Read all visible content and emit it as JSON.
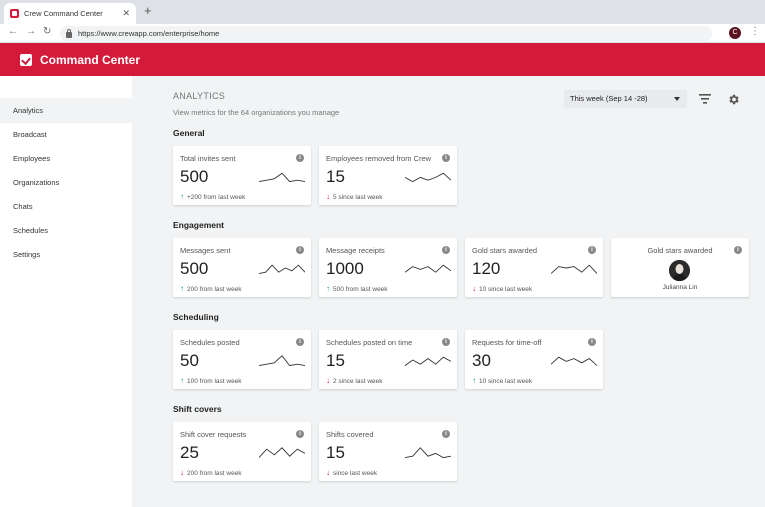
{
  "browser": {
    "tab_title": "Crew Command Center",
    "tab_close": "✕",
    "new_tab": "+",
    "url": "https://www.crewapp.com/enterprise/home",
    "profile_initial": "C",
    "back": "←",
    "forward": "→",
    "reload": "↻",
    "menu": "⋮"
  },
  "app": {
    "title": "Command Center",
    "brand_color": "#d31a3a"
  },
  "sidebar": {
    "items": [
      {
        "label": "Analytics",
        "active": true
      },
      {
        "label": "Broadcast"
      },
      {
        "label": "Employees"
      },
      {
        "label": "Organizations"
      },
      {
        "label": "Chats"
      },
      {
        "label": "Schedules"
      },
      {
        "label": "Settings"
      }
    ]
  },
  "header": {
    "title": "ANALYTICS",
    "subtitle": "View metrics for the 64 organizations you manage",
    "date_range": "This week (Sep 14 -28)"
  },
  "sections": {
    "general": {
      "title": "General",
      "cards": [
        {
          "label": "Total invites sent",
          "value": "500",
          "delta": "+200 from last week",
          "trend": "up",
          "spark": [
            9,
            8,
            7,
            3,
            9,
            8,
            9
          ]
        },
        {
          "label": "Employees removed from Crew",
          "value": "15",
          "delta": "5 since last week",
          "trend": "down",
          "spark": [
            6,
            9,
            6,
            8,
            6,
            3,
            8
          ]
        }
      ]
    },
    "engagement": {
      "title": "Engagement",
      "cards": [
        {
          "label": "Messages sent",
          "value": "500",
          "delta": "200 from last week",
          "trend": "up",
          "spark": [
            9,
            8,
            3,
            8,
            5,
            7,
            3,
            8
          ]
        },
        {
          "label": "Message receipts",
          "value": "1000",
          "delta": "500 from last week",
          "trend": "up",
          "spark": [
            8,
            4,
            6,
            4,
            8,
            3,
            7
          ]
        },
        {
          "label": "Gold stars awarded",
          "value": "120",
          "delta": "10 since last week",
          "trend": "down",
          "spark": [
            9,
            4,
            5,
            4,
            8,
            3,
            9
          ]
        }
      ],
      "person_card": {
        "label": "Gold stars awarded",
        "name": "Julianna Lin"
      }
    },
    "scheduling": {
      "title": "Scheduling",
      "cards": [
        {
          "label": "Schedules posted",
          "value": "50",
          "delta": "100 from last week",
          "trend": "up",
          "spark": [
            9,
            8,
            7,
            2,
            9,
            8,
            9
          ]
        },
        {
          "label": "Schedules posted on time",
          "value": "15",
          "delta": "2 since last week",
          "trend": "down",
          "spark": [
            9,
            5,
            8,
            4,
            8,
            3,
            6
          ]
        },
        {
          "label": "Requests for time-off",
          "value": "30",
          "delta": "10 since last week",
          "trend": "up",
          "spark": [
            8,
            3,
            6,
            4,
            7,
            4,
            9
          ]
        }
      ]
    },
    "shift_covers": {
      "title": "Shift covers",
      "cards": [
        {
          "label": "Shift cover requests",
          "value": "25",
          "delta": "200 from last week",
          "trend": "down",
          "spark": [
            9,
            3,
            7,
            2,
            8,
            3,
            6
          ]
        },
        {
          "label": "Shifts covered",
          "value": "15",
          "delta": "since last week",
          "trend": "down",
          "spark": [
            9,
            8,
            2,
            8,
            6,
            9,
            8
          ]
        }
      ]
    }
  },
  "info_glyph": "i",
  "colors": {
    "up": "#1e9d6b",
    "down": "#d31a3a"
  }
}
